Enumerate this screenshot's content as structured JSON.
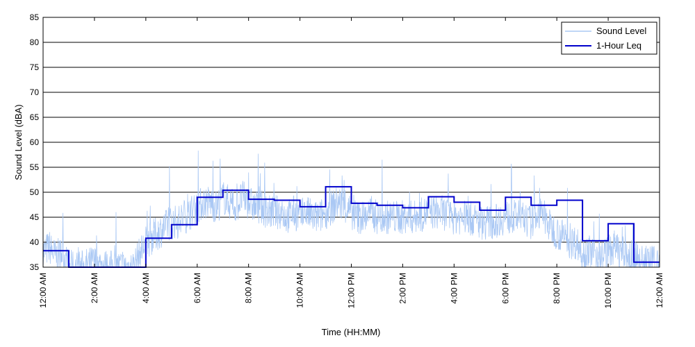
{
  "chart_data": {
    "type": "line",
    "xlabel": "Time (HH:MM)",
    "ylabel": "Sound Level (dBA)",
    "ylim": [
      35,
      85
    ],
    "yticks": [
      35,
      40,
      45,
      50,
      55,
      60,
      65,
      70,
      75,
      80,
      85
    ],
    "xlim_hours": [
      0,
      24
    ],
    "xtick_hours": [
      0,
      2,
      4,
      6,
      8,
      10,
      12,
      14,
      16,
      18,
      20,
      22,
      24
    ],
    "xtick_labels": [
      "12:00 AM",
      "2:00 AM",
      "4:00 AM",
      "6:00 AM",
      "8:00 AM",
      "10:00 AM",
      "12:00 PM",
      "2:00 PM",
      "4:00 PM",
      "6:00 PM",
      "8:00 PM",
      "10:00 PM",
      "12:00 AM"
    ],
    "grid": "horizontal",
    "legend_position": "top-right",
    "colors": {
      "sound_level": "#aac8f4",
      "leq": "#0000cc",
      "grid": "#000000"
    },
    "series": [
      {
        "name": "Sound Level",
        "kind": "noisy-line",
        "x_hours": [
          0,
          0.25,
          0.5,
          0.75,
          1,
          1.5,
          2,
          2.5,
          3,
          3.5,
          3.8,
          4,
          4.25,
          4.5,
          4.75,
          5,
          5.25,
          5.5,
          5.75,
          6,
          6.25,
          6.5,
          6.75,
          7,
          7.25,
          7.5,
          7.75,
          8,
          8.25,
          8.5,
          8.75,
          9,
          9.25,
          9.5,
          9.75,
          10,
          10.25,
          10.5,
          10.75,
          11,
          11.25,
          11.5,
          11.75,
          12,
          12.25,
          12.5,
          12.75,
          13,
          13.5,
          14,
          14.5,
          15,
          15.5,
          16,
          16.5,
          17,
          17.5,
          18,
          18.5,
          19,
          19.25,
          19.5,
          19.75,
          20,
          20.25,
          20.5,
          20.75,
          21,
          21.25,
          21.5,
          21.75,
          22,
          22.25,
          22.5,
          22.75,
          23,
          23.25,
          23.5,
          23.75,
          24
        ],
        "values": [
          38,
          39,
          37,
          38,
          35,
          35,
          36,
          35,
          35,
          35,
          38,
          40,
          41,
          42,
          43,
          44,
          44,
          45,
          46,
          47,
          48,
          48,
          47,
          49,
          48,
          47,
          49,
          48,
          47,
          47,
          46,
          46,
          46,
          45,
          46,
          45,
          46,
          45,
          45,
          46,
          47,
          48,
          47,
          46,
          45,
          45,
          46,
          45,
          45,
          45,
          45,
          46,
          46,
          45,
          45,
          44,
          44,
          45,
          45,
          44,
          46,
          45,
          43,
          42,
          41,
          40,
          40,
          38,
          38,
          38,
          37,
          38,
          39,
          38,
          37,
          37,
          36,
          36,
          36,
          35
        ]
      },
      {
        "name": "1-Hour Leq",
        "kind": "step",
        "hour_start": [
          0,
          1,
          2,
          3,
          4,
          5,
          6,
          7,
          8,
          9,
          10,
          11,
          12,
          13,
          14,
          15,
          16,
          17,
          18,
          19,
          20,
          21,
          22,
          23
        ],
        "values": [
          38.3,
          33,
          33,
          33,
          40.8,
          43.5,
          49,
          50.4,
          48.6,
          48.4,
          47.1,
          51.1,
          47.8,
          47.4,
          46.9,
          49.1,
          48,
          46.4,
          49,
          47.4,
          48.4,
          40.3,
          43.7,
          36
        ]
      }
    ]
  }
}
